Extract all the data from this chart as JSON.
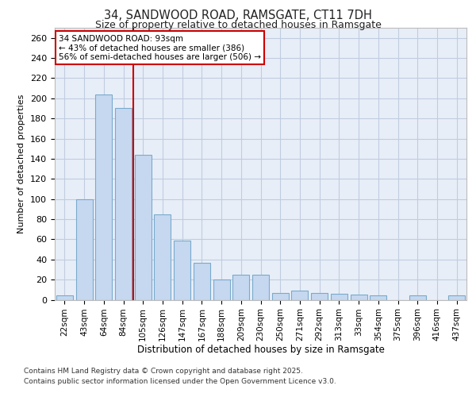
{
  "title_line1": "34, SANDWOOD ROAD, RAMSGATE, CT11 7DH",
  "title_line2": "Size of property relative to detached houses in Ramsgate",
  "xlabel": "Distribution of detached houses by size in Ramsgate",
  "ylabel": "Number of detached properties",
  "categories": [
    "22sqm",
    "43sqm",
    "64sqm",
    "84sqm",
    "105sqm",
    "126sqm",
    "147sqm",
    "167sqm",
    "188sqm",
    "209sqm",
    "230sqm",
    "250sqm",
    "271sqm",
    "292sqm",
    "313sqm",
    "33sqm",
    "354sqm",
    "375sqm",
    "396sqm",
    "416sqm",
    "437sqm"
  ],
  "values": [
    4,
    100,
    204,
    190,
    144,
    85,
    59,
    37,
    20,
    25,
    25,
    7,
    9,
    7,
    6,
    5,
    4,
    0,
    4,
    0,
    4
  ],
  "bar_color": "#c5d8f0",
  "bar_edge_color": "#7aaacc",
  "plot_bg_color": "#e8eef8",
  "fig_bg_color": "#ffffff",
  "grid_color": "#c0cce0",
  "vline_x": 3.5,
  "vline_color": "#cc0000",
  "annotation_text": "34 SANDWOOD ROAD: 93sqm\n← 43% of detached houses are smaller (386)\n56% of semi-detached houses are larger (506) →",
  "annotation_box_facecolor": "#ffffff",
  "annotation_box_edgecolor": "#cc0000",
  "ylim": [
    0,
    270
  ],
  "yticks": [
    0,
    20,
    40,
    60,
    80,
    100,
    120,
    140,
    160,
    180,
    200,
    220,
    240,
    260
  ],
  "footer_line1": "Contains HM Land Registry data © Crown copyright and database right 2025.",
  "footer_line2": "Contains public sector information licensed under the Open Government Licence v3.0."
}
